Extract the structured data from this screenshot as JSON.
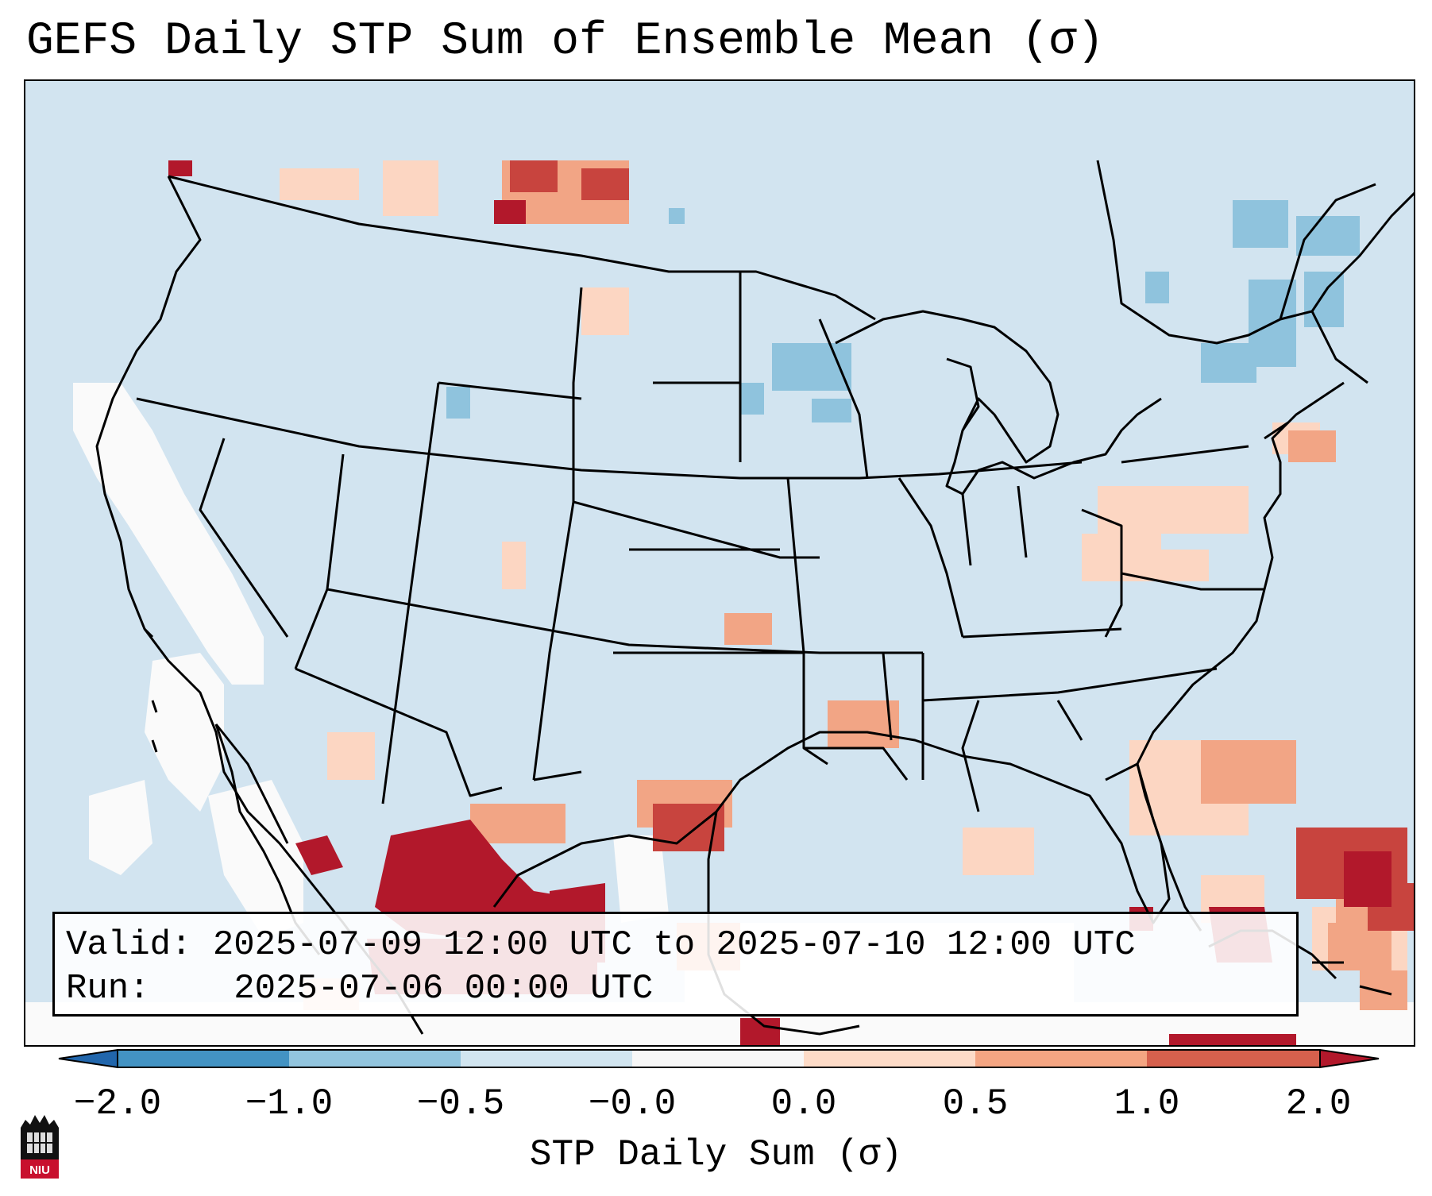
{
  "title": "GEFS Daily STP Sum of Ensemble Mean (σ)",
  "info": {
    "valid_label": "Valid:",
    "valid_text": "2025-07-09 12:00 UTC to 2025-07-10 12:00 UTC",
    "run_label": "Run:",
    "run_text": "2025-07-06 00:00 UTC"
  },
  "colorbar": {
    "label": "STP Daily Sum (σ)",
    "ticks": [
      "−2.0",
      "−1.0",
      "−0.5",
      "−0.0",
      "0.0",
      "0.5",
      "1.0",
      "2.0"
    ],
    "colors": [
      "#4393c3",
      "#92c5de",
      "#d1e5f0",
      "#f7f7f7",
      "#fddbc7",
      "#f4a582",
      "#d6604d"
    ],
    "under_color": "#2166ac",
    "over_color": "#b2182b"
  },
  "field_colors": {
    "background": "#d2e4f0",
    "white": "#fafafa",
    "light_red": "#fcd6c2",
    "salmon": "#f2a585",
    "red": "#c8443e",
    "dark_red": "#b2182b",
    "light_blue": "#8fc3dd",
    "lines": "#000000"
  },
  "logo": {
    "text": "NIU"
  }
}
